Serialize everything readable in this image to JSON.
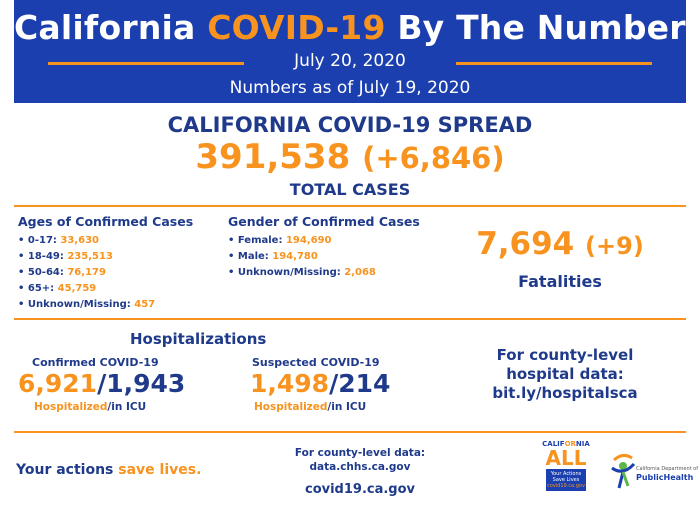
{
  "header": {
    "title_part1": "California ",
    "title_highlight": "COVID-19",
    "title_part2": " By The Numbers",
    "date": "July 20, 2020",
    "as_of": "Numbers as of July 19, 2020"
  },
  "spread": {
    "title": "CALIFORNIA COVID-19 SPREAD",
    "total": "391,538",
    "total_delta": "(+6,846)",
    "total_label": "TOTAL CASES"
  },
  "ages": {
    "heading": "Ages of Confirmed Cases",
    "items": [
      {
        "label": "• 0-17: ",
        "value": "33,630"
      },
      {
        "label": "• 18-49: ",
        "value": "235,513"
      },
      {
        "label": "• 50-64: ",
        "value": "76,179"
      },
      {
        "label": "• 65+: ",
        "value": "45,759"
      },
      {
        "label": "• Unknown/Missing: ",
        "value": "457"
      }
    ]
  },
  "gender": {
    "heading": "Gender of Confirmed Cases",
    "items": [
      {
        "label": "• Female: ",
        "value": "194,690"
      },
      {
        "label": "• Male: ",
        "value": "194,780"
      },
      {
        "label": "• Unknown/Missing: ",
        "value": "2,068"
      }
    ]
  },
  "fatalities": {
    "value": "7,694",
    "delta": "(+9)",
    "label": "Fatalities"
  },
  "hospitalizations": {
    "title": "Hospitalizations",
    "confirmed": {
      "label": "Confirmed COVID-19",
      "hospitalized": "6,921",
      "icu": "1,943",
      "sub_hosp": "Hospitalized",
      "sub_icu": "/in ICU"
    },
    "suspected": {
      "label": "Suspected COVID-19",
      "hospitalized": "1,498",
      "icu": "214",
      "sub_hosp": "Hospitalized",
      "sub_icu": "/in ICU"
    },
    "county_line1": "For county-level",
    "county_line2": "hospital data:",
    "county_link": "bit.ly/hospitalsca"
  },
  "footer": {
    "slogan_part1": "Your actions ",
    "slogan_part2": "save lives.",
    "data_label_line1": "For county-level data:",
    "data_label_line2": "data.chhs.ca.gov",
    "site": "covid19.ca.gov",
    "ca_logo_brand_a": "CALIF",
    "ca_logo_brand_b": "OR",
    "ca_logo_brand_c": "NIA",
    "ca_logo_all": "ALL",
    "ca_logo_box_line1": "Your Actions",
    "ca_logo_box_line2": "Save Lives",
    "ca_logo_box_line3": "covid19.ca.gov",
    "cdph_line1": "California Department of",
    "cdph_line2": "PublicHealth"
  },
  "colors": {
    "navy": "#1b3fae",
    "text_blue": "#1f3a8a",
    "orange": "#f7931e"
  }
}
